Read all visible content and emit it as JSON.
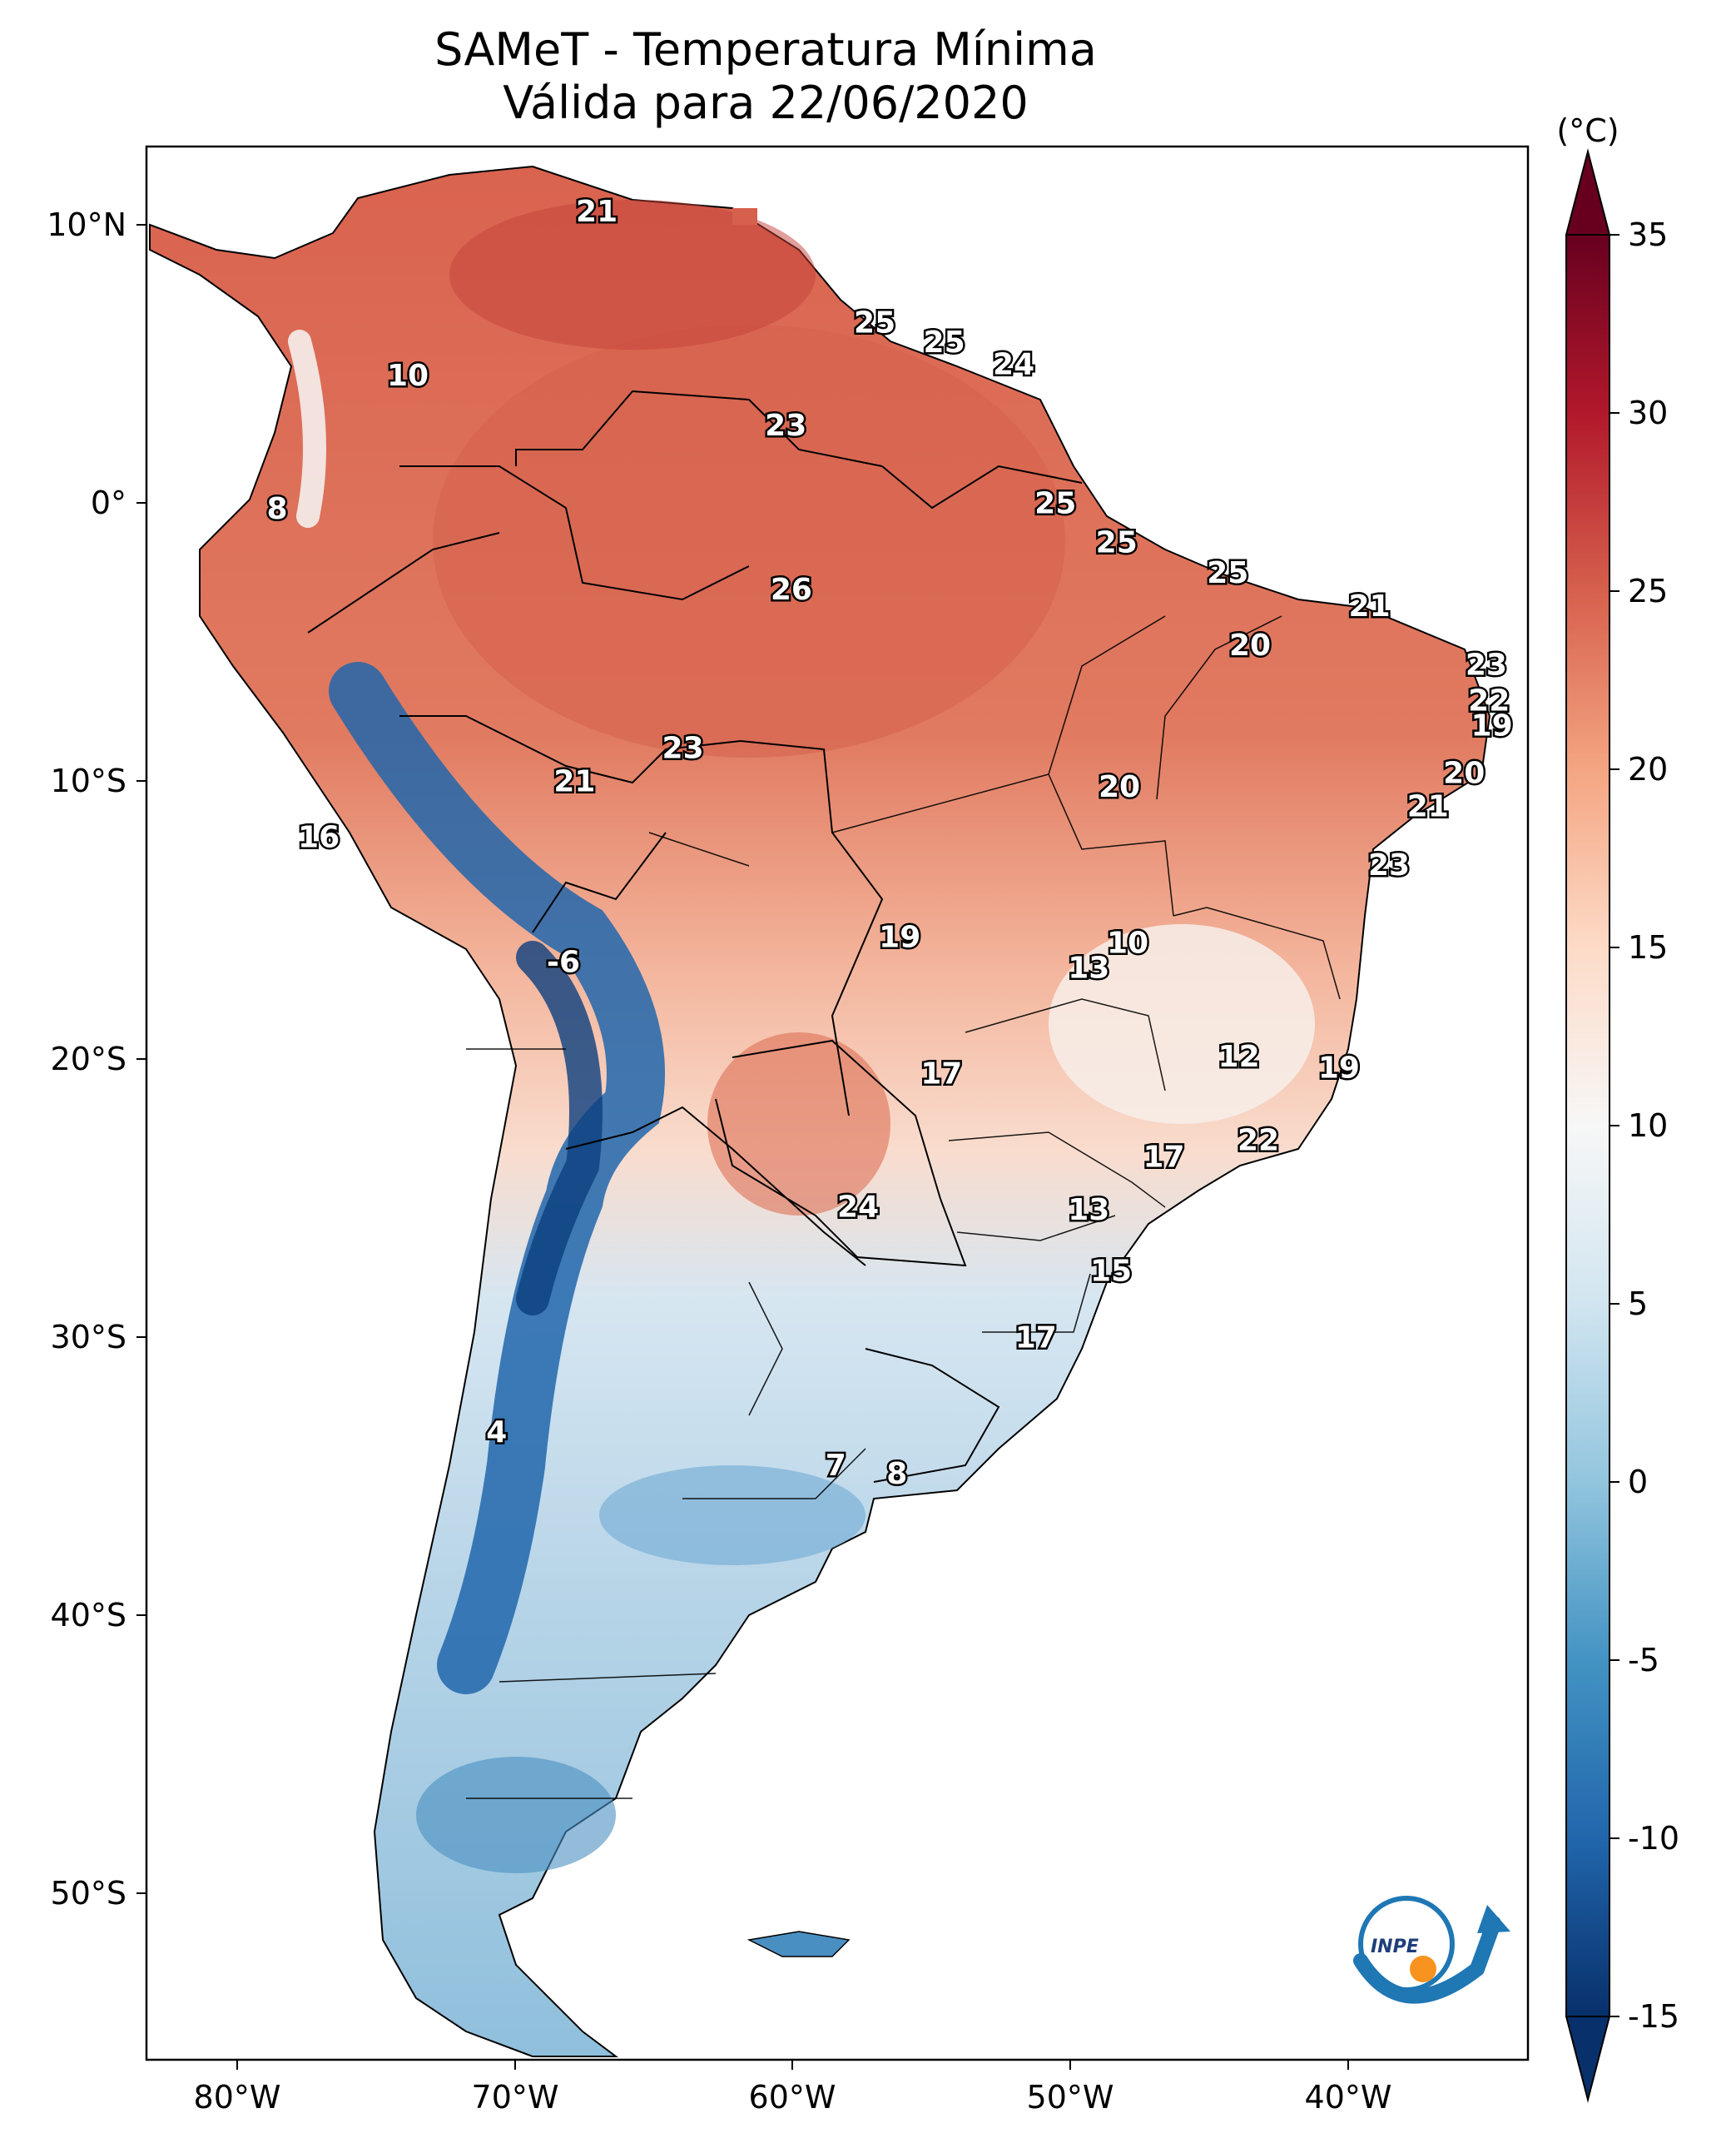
{
  "title": "SAMeT - Temperatura Mínima",
  "subtitle": "Válida para 22/06/2020",
  "map": {
    "longitude_labels": [
      "80°W",
      "70°W",
      "60°W",
      "50°W",
      "40°W"
    ],
    "latitude_labels": [
      "10°N",
      "0°",
      "10°S",
      "20°S",
      "30°S",
      "40°S",
      "50°S"
    ]
  },
  "colorbar": {
    "unit": "(°C)",
    "ticks": [
      "35",
      "30",
      "25",
      "20",
      "15",
      "10",
      "5",
      "0",
      "-5",
      "-10",
      "-15"
    ],
    "range": [
      -15,
      35
    ],
    "colormap": [
      "#08306b",
      "#2166ac",
      "#4393c3",
      "#92c5de",
      "#d1e5f0",
      "#f7f7f7",
      "#fddbc7",
      "#f4a582",
      "#d6604d",
      "#b2182b",
      "#67001f"
    ]
  },
  "stations": [
    {
      "value": "21",
      "lon": -67.0,
      "lat": 10.5
    },
    {
      "value": "25",
      "lon": -57.0,
      "lat": 6.5
    },
    {
      "value": "25",
      "lon": -54.5,
      "lat": 5.8
    },
    {
      "value": "24",
      "lon": -52.0,
      "lat": 5.0
    },
    {
      "value": "10",
      "lon": -73.8,
      "lat": 4.6
    },
    {
      "value": "23",
      "lon": -60.2,
      "lat": 2.8
    },
    {
      "value": "8",
      "lon": -78.5,
      "lat": -0.2
    },
    {
      "value": "25",
      "lon": -50.5,
      "lat": 0.0
    },
    {
      "value": "25",
      "lon": -48.3,
      "lat": -1.4
    },
    {
      "value": "25",
      "lon": -44.3,
      "lat": -2.5
    },
    {
      "value": "26",
      "lon": -60.0,
      "lat": -3.1
    },
    {
      "value": "21",
      "lon": -39.2,
      "lat": -3.7
    },
    {
      "value": "20",
      "lon": -43.5,
      "lat": -5.1
    },
    {
      "value": "23",
      "lon": -35.0,
      "lat": -5.8
    },
    {
      "value": "22",
      "lon": -34.9,
      "lat": -7.1
    },
    {
      "value": "19",
      "lon": -34.8,
      "lat": -8.0
    },
    {
      "value": "23",
      "lon": -63.9,
      "lat": -8.8
    },
    {
      "value": "21",
      "lon": -67.8,
      "lat": -10.0
    },
    {
      "value": "20",
      "lon": -48.2,
      "lat": -10.2
    },
    {
      "value": "20",
      "lon": -35.8,
      "lat": -9.7
    },
    {
      "value": "21",
      "lon": -37.1,
      "lat": -10.9
    },
    {
      "value": "16",
      "lon": -77.0,
      "lat": -12.0
    },
    {
      "value": "23",
      "lon": -38.5,
      "lat": -13.0
    },
    {
      "value": "10",
      "lon": -47.9,
      "lat": -15.8
    },
    {
      "value": "19",
      "lon": -56.1,
      "lat": -15.6
    },
    {
      "value": "13",
      "lon": -49.3,
      "lat": -16.7
    },
    {
      "value": "-6",
      "lon": -68.2,
      "lat": -16.5
    },
    {
      "value": "12",
      "lon": -43.9,
      "lat": -19.9
    },
    {
      "value": "17",
      "lon": -54.6,
      "lat": -20.5
    },
    {
      "value": "19",
      "lon": -40.3,
      "lat": -20.3
    },
    {
      "value": "22",
      "lon": -43.2,
      "lat": -22.9
    },
    {
      "value": "17",
      "lon": -46.6,
      "lat": -23.5
    },
    {
      "value": "24",
      "lon": -57.6,
      "lat": -25.3
    },
    {
      "value": "13",
      "lon": -49.3,
      "lat": -25.4
    },
    {
      "value": "15",
      "lon": -48.5,
      "lat": -27.6
    },
    {
      "value": "17",
      "lon": -51.2,
      "lat": -30.0
    },
    {
      "value": "4",
      "lon": -70.6,
      "lat": -33.4
    },
    {
      "value": "7",
      "lon": -58.4,
      "lat": -34.6
    },
    {
      "value": "8",
      "lon": -56.2,
      "lat": -34.9
    }
  ],
  "logo": {
    "text": "INPE"
  }
}
